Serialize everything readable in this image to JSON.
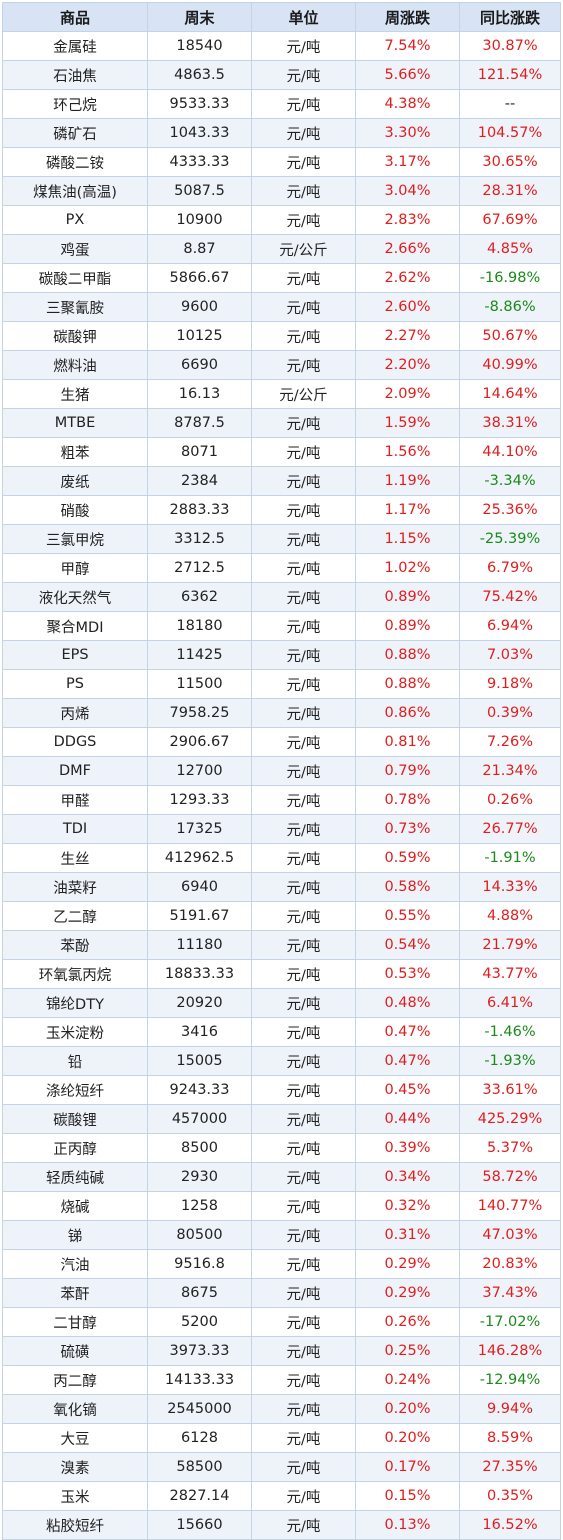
{
  "colors": {
    "header_bg": "#d8e4f3",
    "stripe_bg": "#eef3fa",
    "border": "#c5d3e6",
    "up": "#e11d1d",
    "down": "#1a8a1a"
  },
  "table": {
    "headers": [
      "商品",
      "周末",
      "单位",
      "周涨跌",
      "同比涨跌"
    ],
    "rows": [
      [
        "金属硅",
        "18540",
        "元/吨",
        "7.54%",
        "30.87%"
      ],
      [
        "石油焦",
        "4863.5",
        "元/吨",
        "5.66%",
        "121.54%"
      ],
      [
        "环己烷",
        "9533.33",
        "元/吨",
        "4.38%",
        "--"
      ],
      [
        "磷矿石",
        "1043.33",
        "元/吨",
        "3.30%",
        "104.57%"
      ],
      [
        "磷酸二铵",
        "4333.33",
        "元/吨",
        "3.17%",
        "30.65%"
      ],
      [
        "煤焦油(高温)",
        "5087.5",
        "元/吨",
        "3.04%",
        "28.31%"
      ],
      [
        "PX",
        "10900",
        "元/吨",
        "2.83%",
        "67.69%"
      ],
      [
        "鸡蛋",
        "8.87",
        "元/公斤",
        "2.66%",
        "4.85%"
      ],
      [
        "碳酸二甲酯",
        "5866.67",
        "元/吨",
        "2.62%",
        "-16.98%"
      ],
      [
        "三聚氰胺",
        "9600",
        "元/吨",
        "2.60%",
        "-8.86%"
      ],
      [
        "碳酸钾",
        "10125",
        "元/吨",
        "2.27%",
        "50.67%"
      ],
      [
        "燃料油",
        "6690",
        "元/吨",
        "2.20%",
        "40.99%"
      ],
      [
        "生猪",
        "16.13",
        "元/公斤",
        "2.09%",
        "14.64%"
      ],
      [
        "MTBE",
        "8787.5",
        "元/吨",
        "1.59%",
        "38.31%"
      ],
      [
        "粗苯",
        "8071",
        "元/吨",
        "1.56%",
        "44.10%"
      ],
      [
        "废纸",
        "2384",
        "元/吨",
        "1.19%",
        "-3.34%"
      ],
      [
        "硝酸",
        "2883.33",
        "元/吨",
        "1.17%",
        "25.36%"
      ],
      [
        "三氯甲烷",
        "3312.5",
        "元/吨",
        "1.15%",
        "-25.39%"
      ],
      [
        "甲醇",
        "2712.5",
        "元/吨",
        "1.02%",
        "6.79%"
      ],
      [
        "液化天然气",
        "6362",
        "元/吨",
        "0.89%",
        "75.42%"
      ],
      [
        "聚合MDI",
        "18180",
        "元/吨",
        "0.89%",
        "6.94%"
      ],
      [
        "EPS",
        "11425",
        "元/吨",
        "0.88%",
        "7.03%"
      ],
      [
        "PS",
        "11500",
        "元/吨",
        "0.88%",
        "9.18%"
      ],
      [
        "丙烯",
        "7958.25",
        "元/吨",
        "0.86%",
        "0.39%"
      ],
      [
        "DDGS",
        "2906.67",
        "元/吨",
        "0.81%",
        "7.26%"
      ],
      [
        "DMF",
        "12700",
        "元/吨",
        "0.79%",
        "21.34%"
      ],
      [
        "甲醛",
        "1293.33",
        "元/吨",
        "0.78%",
        "0.26%"
      ],
      [
        "TDI",
        "17325",
        "元/吨",
        "0.73%",
        "26.77%"
      ],
      [
        "生丝",
        "412962.5",
        "元/吨",
        "0.59%",
        "-1.91%"
      ],
      [
        "油菜籽",
        "6940",
        "元/吨",
        "0.58%",
        "14.33%"
      ],
      [
        "乙二醇",
        "5191.67",
        "元/吨",
        "0.55%",
        "4.88%"
      ],
      [
        "苯酚",
        "11180",
        "元/吨",
        "0.54%",
        "21.79%"
      ],
      [
        "环氧氯丙烷",
        "18833.33",
        "元/吨",
        "0.53%",
        "43.77%"
      ],
      [
        "锦纶DTY",
        "20920",
        "元/吨",
        "0.48%",
        "6.41%"
      ],
      [
        "玉米淀粉",
        "3416",
        "元/吨",
        "0.47%",
        "-1.46%"
      ],
      [
        "铅",
        "15005",
        "元/吨",
        "0.47%",
        "-1.93%"
      ],
      [
        "涤纶短纤",
        "9243.33",
        "元/吨",
        "0.45%",
        "33.61%"
      ],
      [
        "碳酸锂",
        "457000",
        "元/吨",
        "0.44%",
        "425.29%"
      ],
      [
        "正丙醇",
        "8500",
        "元/吨",
        "0.39%",
        "5.37%"
      ],
      [
        "轻质纯碱",
        "2930",
        "元/吨",
        "0.34%",
        "58.72%"
      ],
      [
        "烧碱",
        "1258",
        "元/吨",
        "0.32%",
        "140.77%"
      ],
      [
        "锑",
        "80500",
        "元/吨",
        "0.31%",
        "47.03%"
      ],
      [
        "汽油",
        "9516.8",
        "元/吨",
        "0.29%",
        "20.83%"
      ],
      [
        "苯酐",
        "8675",
        "元/吨",
        "0.29%",
        "37.43%"
      ],
      [
        "二甘醇",
        "5200",
        "元/吨",
        "0.26%",
        "-17.02%"
      ],
      [
        "硫磺",
        "3973.33",
        "元/吨",
        "0.25%",
        "146.28%"
      ],
      [
        "丙二醇",
        "14133.33",
        "元/吨",
        "0.24%",
        "-12.94%"
      ],
      [
        "氧化镝",
        "2545000",
        "元/吨",
        "0.20%",
        "9.94%"
      ],
      [
        "大豆",
        "6128",
        "元/吨",
        "0.20%",
        "8.59%"
      ],
      [
        "溴素",
        "58500",
        "元/吨",
        "0.17%",
        "27.35%"
      ],
      [
        "玉米",
        "2827.14",
        "元/吨",
        "0.15%",
        "0.35%"
      ],
      [
        "粘胶短纤",
        "15660",
        "元/吨",
        "0.13%",
        "16.52%"
      ]
    ]
  }
}
